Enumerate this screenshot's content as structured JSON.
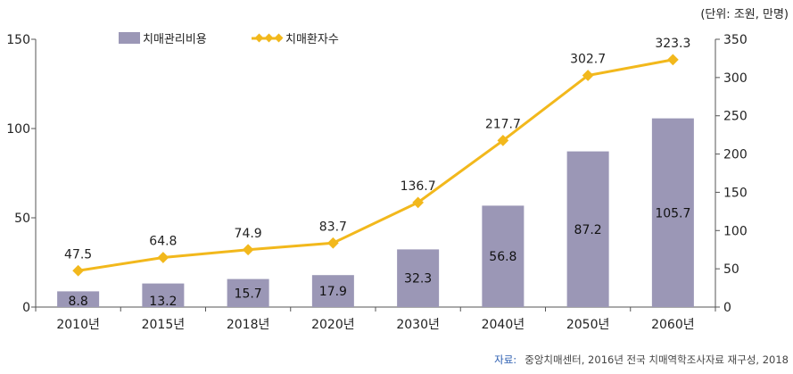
{
  "chart_data": {
    "type": "bar+line",
    "categories": [
      "2010년",
      "2015년",
      "2018년",
      "2020년",
      "2030년",
      "2040년",
      "2050년",
      "2060년"
    ],
    "series": [
      {
        "name": "치매관리비용",
        "type": "bar",
        "axis": "left",
        "values": [
          8.8,
          13.2,
          15.7,
          17.9,
          32.3,
          56.8,
          87.2,
          105.7
        ],
        "labels": [
          "8.8",
          "13.2",
          "15.7",
          "17.9",
          "32.3",
          "56.8",
          "87.2",
          "105.7"
        ],
        "color": "#9b97b6"
      },
      {
        "name": "치매환자수",
        "type": "line",
        "axis": "right",
        "values": [
          47.5,
          64.8,
          74.9,
          83.7,
          136.7,
          217.7,
          302.7,
          323.3
        ],
        "labels": [
          "47.5",
          "64.8",
          "74.9",
          "83.7",
          "136.7",
          "217.7",
          "302.7",
          "323.3"
        ],
        "color": "#f2b81c"
      }
    ],
    "y_left": {
      "min": 0,
      "max": 150,
      "ticks": [
        "0",
        "50",
        "100",
        "150"
      ]
    },
    "y_right": {
      "min": 0,
      "max": 350,
      "ticks": [
        "0",
        "50",
        "100",
        "150",
        "200",
        "250",
        "300",
        "350"
      ]
    },
    "unit_note": "(단위: 조원, 만명)",
    "legend_position": "top-left",
    "grid": false
  },
  "source": {
    "label": "자료:",
    "text": "중앙치매센터, 2016년 전국 치매역학조사자료 재구성, 2018"
  }
}
